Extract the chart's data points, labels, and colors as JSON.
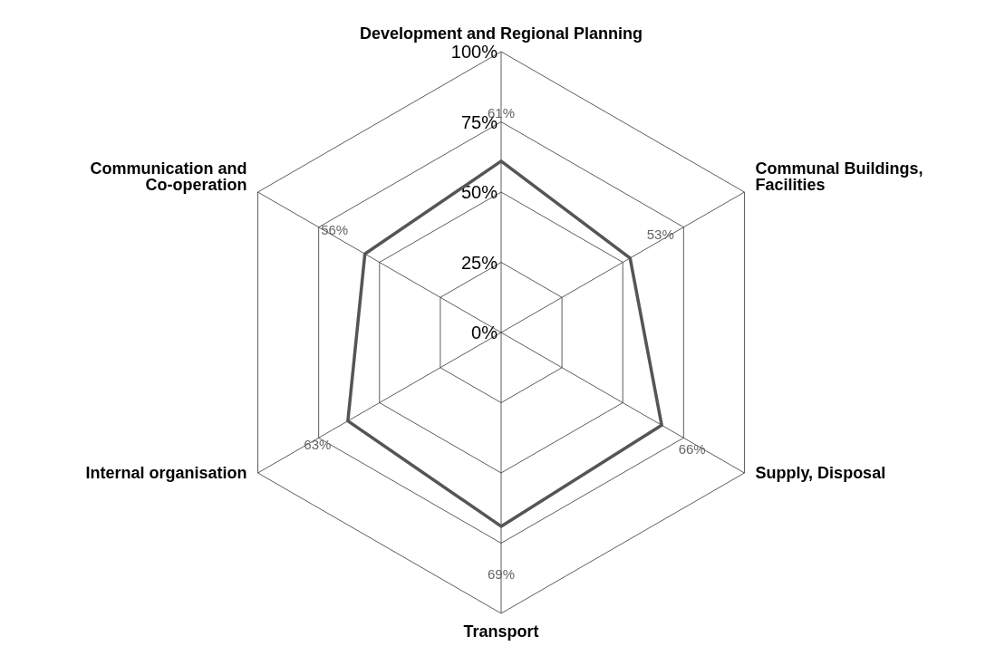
{
  "chart_data": {
    "type": "radar",
    "categories": [
      "Development and Regional Planning",
      "Communal Buildings, Facilities",
      "Supply, Disposal",
      "Transport",
      "Internal organisation",
      "Communication and Co-operation"
    ],
    "series": [
      {
        "color": "#555555",
        "values": [
          61,
          53,
          66,
          69,
          63,
          56
        ],
        "value_labels": [
          "61%",
          "53%",
          "66%",
          "69%",
          "63%",
          "56%"
        ]
      }
    ],
    "ylim": [
      0,
      100
    ],
    "yticks": [
      {
        "value": 0,
        "label": "0%"
      },
      {
        "value": 25,
        "label": "25%"
      },
      {
        "value": 50,
        "label": "50%"
      },
      {
        "value": 75,
        "label": "75%"
      },
      {
        "value": 100,
        "label": "100%"
      }
    ],
    "grid": true
  }
}
